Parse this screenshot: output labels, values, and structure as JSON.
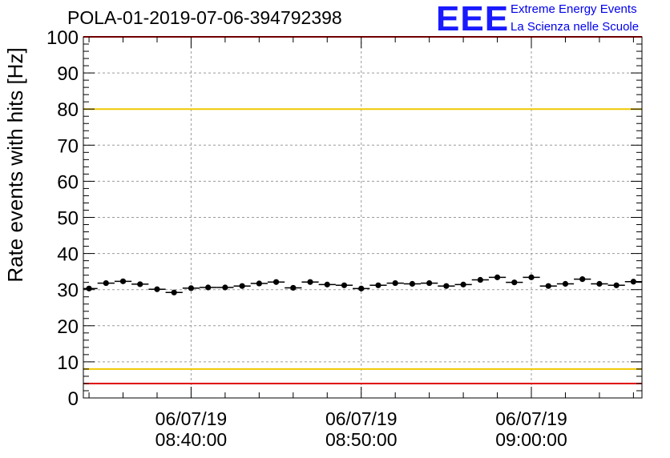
{
  "header": {
    "title": "POLA-01-2019-07-06-394792398",
    "logo_text": "EEE",
    "logo_line1": "Extreme Energy Events",
    "logo_line2": "La Scienza nelle Scuole"
  },
  "colors": {
    "logo": "#1a1aff",
    "warning_line": "#f0c800",
    "limit_line": "#e00000",
    "points": "#000000"
  },
  "chart_data": {
    "type": "scatter",
    "ylabel": "Rate events with hits [Hz]",
    "xlabel": "",
    "ylim": [
      0,
      100
    ],
    "y_ticks": [
      0,
      10,
      20,
      30,
      40,
      50,
      60,
      70,
      80,
      90,
      100
    ],
    "xlim": [
      "2019-07-06 08:33:40",
      "2019-07-06 09:06:30"
    ],
    "x_ticks": [
      {
        "date": "06/07/19",
        "time": "08:40:00"
      },
      {
        "date": "06/07/19",
        "time": "08:50:00"
      },
      {
        "date": "06/07/19",
        "time": "09:00:00"
      }
    ],
    "grid": true,
    "x": [
      "08:34:00",
      "08:35:00",
      "08:36:00",
      "08:37:00",
      "08:38:00",
      "08:39:00",
      "08:40:00",
      "08:41:00",
      "08:42:00",
      "08:43:00",
      "08:44:00",
      "08:45:00",
      "08:46:00",
      "08:47:00",
      "08:48:00",
      "08:49:00",
      "08:50:00",
      "08:51:00",
      "08:52:00",
      "08:53:00",
      "08:54:00",
      "08:55:00",
      "08:56:00",
      "08:57:00",
      "08:58:00",
      "08:59:00",
      "09:00:00",
      "09:01:00",
      "09:02:00",
      "09:03:00",
      "09:04:00",
      "09:05:00",
      "09:06:00"
    ],
    "values": [
      30.3,
      31.8,
      32.3,
      31.5,
      30.1,
      29.2,
      30.4,
      30.6,
      30.6,
      31.0,
      31.7,
      32.1,
      30.5,
      32.1,
      31.4,
      31.2,
      30.3,
      31.2,
      31.8,
      31.6,
      31.8,
      31.0,
      31.4,
      32.7,
      33.4,
      32.0,
      33.4,
      31.0,
      31.6,
      32.9,
      31.6,
      31.2,
      32.2
    ],
    "reference_lines": [
      {
        "y": 80,
        "color": "#f0c800"
      },
      {
        "y": 8,
        "color": "#f0c800"
      },
      {
        "y": 4,
        "color": "#e00000"
      },
      {
        "y": 100,
        "color": "#e00000"
      }
    ]
  }
}
